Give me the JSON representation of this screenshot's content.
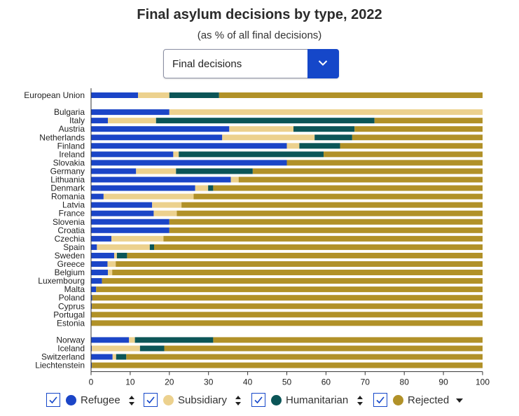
{
  "title": "Final asylum decisions by type, 2022",
  "subtitle": "(as % of all final decisions)",
  "dropdown": {
    "selected": "Final decisions",
    "icon": "chevron-down-icon"
  },
  "legend": [
    {
      "label": "Refugee",
      "color": "#1b45c7",
      "sort_icon": "sort-updown-icon"
    },
    {
      "label": "Subsidiary",
      "color": "#ecd18e",
      "sort_icon": "sort-updown-icon"
    },
    {
      "label": "Humanitarian",
      "color": "#0b5557",
      "sort_icon": "sort-updown-icon"
    },
    {
      "label": "Rejected",
      "color": "#b19128",
      "sort_icon": "sort-down-icon"
    }
  ],
  "chart_data": {
    "type": "bar",
    "orientation": "horizontal",
    "stacked": true,
    "title": "Final asylum decisions by type, 2022",
    "subtitle": "(as % of all final decisions)",
    "xlim": [
      0,
      100
    ],
    "xticks": [
      "0",
      "10",
      "20",
      "30",
      "40",
      "50",
      "60",
      "70",
      "80",
      "90",
      "100"
    ],
    "grid": false,
    "legend_position": "bottom",
    "groups": [
      [
        "European Union"
      ],
      [
        "Bulgaria",
        "Italy",
        "Austria",
        "Netherlands",
        "Finland",
        "Ireland",
        "Slovakia",
        "Germany",
        "Lithuania",
        "Denmark",
        "Romania",
        "Latvia",
        "France",
        "Slovenia",
        "Croatia",
        "Czechia",
        "Spain",
        "Sweden",
        "Greece",
        "Belgium",
        "Luxembourg",
        "Malta",
        "Poland",
        "Cyprus",
        "Portugal",
        "Estonia"
      ],
      [
        "Norway",
        "Iceland",
        "Switzerland",
        "Liechtenstein"
      ]
    ],
    "categories": [
      "European Union",
      "Bulgaria",
      "Italy",
      "Austria",
      "Netherlands",
      "Finland",
      "Ireland",
      "Slovakia",
      "Germany",
      "Lithuania",
      "Denmark",
      "Romania",
      "Latvia",
      "France",
      "Slovenia",
      "Croatia",
      "Czechia",
      "Spain",
      "Sweden",
      "Greece",
      "Belgium",
      "Luxembourg",
      "Malta",
      "Poland",
      "Cyprus",
      "Portugal",
      "Estonia",
      "Norway",
      "Iceland",
      "Switzerland",
      "Liechtenstein"
    ],
    "series": [
      {
        "name": "Refugee",
        "color": "#1b45c7",
        "values": [
          12.0,
          20.0,
          4.3,
          35.3,
          33.5,
          50.0,
          21.0,
          50.0,
          11.5,
          35.7,
          26.6,
          3.2,
          15.6,
          16.0,
          20.0,
          20.0,
          5.2,
          1.5,
          5.9,
          4.2,
          4.3,
          2.8,
          1.3,
          0.3,
          0.2,
          0.1,
          0.1,
          9.7,
          0.2,
          5.5,
          0.2
        ]
      },
      {
        "name": "Subsidiary",
        "color": "#ecd18e",
        "values": [
          8.0,
          80.0,
          12.3,
          16.4,
          23.6,
          3.2,
          1.4,
          0.0,
          10.2,
          2.0,
          3.3,
          23.0,
          7.5,
          5.9,
          0.0,
          0.0,
          13.3,
          13.5,
          0.7,
          2.1,
          1.1,
          0.0,
          0.0,
          0.0,
          0.0,
          0.0,
          0.0,
          1.5,
          12.3,
          0.9,
          0.0
        ]
      },
      {
        "name": "Humanitarian",
        "color": "#0b5557",
        "values": [
          12.7,
          0.0,
          55.8,
          15.6,
          9.6,
          10.4,
          37.0,
          0.0,
          19.6,
          0.0,
          1.3,
          0.0,
          0.0,
          0.0,
          0.0,
          0.0,
          0.0,
          1.1,
          2.6,
          0.0,
          0.0,
          0.0,
          0.0,
          0.0,
          0.0,
          0.0,
          0.0,
          20.0,
          6.2,
          2.6,
          0.0
        ]
      },
      {
        "name": "Rejected",
        "color": "#b19128",
        "values": [
          67.3,
          0.0,
          27.6,
          32.7,
          33.3,
          36.4,
          40.6,
          50.0,
          58.7,
          62.3,
          68.8,
          73.8,
          76.9,
          78.1,
          80.0,
          80.0,
          81.5,
          83.9,
          90.8,
          93.7,
          94.6,
          97.2,
          98.7,
          99.7,
          99.8,
          99.9,
          99.9,
          68.8,
          81.3,
          91.0,
          99.8
        ]
      }
    ]
  }
}
